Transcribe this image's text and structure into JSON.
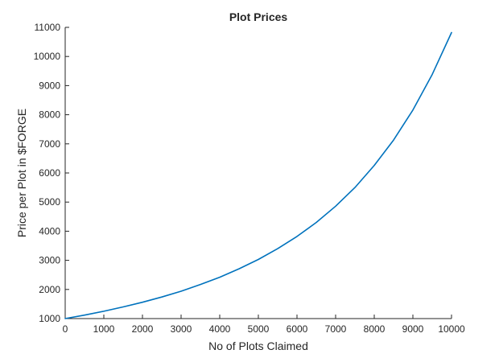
{
  "chart_data": {
    "type": "line",
    "title": "Plot Prices",
    "xlabel": "No of Plots Claimed",
    "ylabel": "Price per Plot in $FORGE",
    "xlim": [
      0,
      10000
    ],
    "ylim": [
      1000,
      11000
    ],
    "x_ticks": [
      0,
      1000,
      2000,
      3000,
      4000,
      5000,
      6000,
      7000,
      8000,
      9000,
      10000
    ],
    "y_ticks": [
      1000,
      2000,
      3000,
      4000,
      5000,
      6000,
      7000,
      8000,
      9000,
      10000,
      11000
    ],
    "grid": false,
    "series": [
      {
        "color": "#0072BD",
        "x": [
          0,
          500,
          1000,
          1500,
          2000,
          2500,
          3000,
          3500,
          4000,
          4500,
          5000,
          5500,
          6000,
          6500,
          7000,
          7500,
          8000,
          8500,
          9000,
          9500,
          10000
        ],
        "y": [
          1000,
          1120,
          1250,
          1400,
          1560,
          1740,
          1940,
          2170,
          2420,
          2710,
          3030,
          3400,
          3820,
          4300,
          4860,
          5500,
          6260,
          7130,
          8160,
          9380,
          10820
        ]
      }
    ]
  }
}
